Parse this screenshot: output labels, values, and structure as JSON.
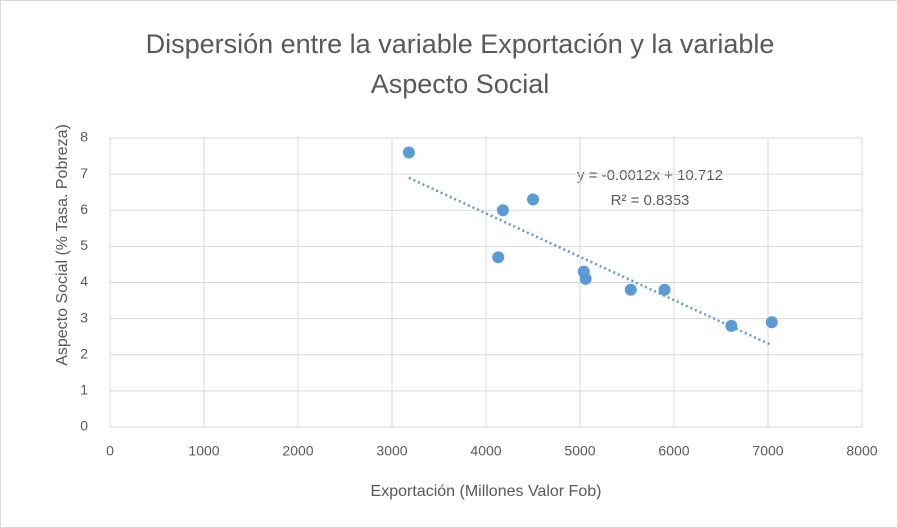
{
  "chart_data": {
    "type": "scatter",
    "title": "Dispersión entre la variable Exportación y la variable Aspecto Social",
    "x_label": "Exportación (Millones Valor Fob)",
    "y_label": "Aspecto Social (% Tasa. Pobreza)",
    "x": [
      3180,
      4130,
      4180,
      4500,
      5040,
      5060,
      5540,
      5900,
      6610,
      7040
    ],
    "values": [
      7.6,
      4.7,
      6.0,
      6.3,
      4.3,
      4.1,
      3.8,
      3.8,
      2.8,
      2.9
    ],
    "color": "#5b9bd5",
    "xlim": [
      0,
      8000
    ],
    "xticks": [
      0,
      1000,
      2000,
      3000,
      4000,
      5000,
      6000,
      7000,
      8000
    ],
    "ylim": [
      0,
      8
    ],
    "yticks": [
      0,
      1,
      2,
      3,
      4,
      5,
      6,
      7,
      8
    ],
    "grid": true,
    "trendline": {
      "slope": -0.0012,
      "intercept": 10.712,
      "equation": "y = -0.0012x + 10.712",
      "r_squared": "R² = 0.8353"
    }
  }
}
